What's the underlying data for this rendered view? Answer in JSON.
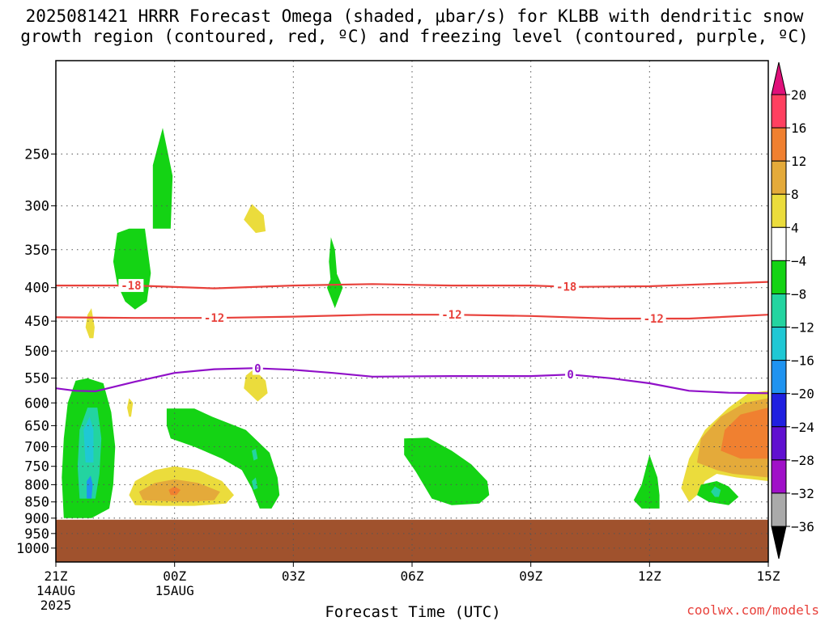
{
  "title_line1": "2025081421 HRRR Forecast Omega (shaded, μbar/s) for KLBB with dendritic snow",
  "title_line2": "growth region (contoured, red, ºC) and freezing level (contoured, purple, ºC)",
  "watermark": "coolwx.com/models",
  "chart_data": {
    "type": "time-height cross section",
    "title": "2025081421 HRRR Forecast Omega (shaded, μbar/s) for KLBB with dendritic snow growth region (contoured, red, ºC) and freezing level (contoured, purple, ºC)",
    "xlabel": "Forecast Time (UTC)",
    "ylabel": "",
    "x_unit": "forecast hours from 21Z 14AUG 2025",
    "xlim": [
      0,
      18
    ],
    "ylim_hPa": [
      1050,
      180
    ],
    "x_ticks": [
      {
        "hour": 0,
        "label": "21Z",
        "sub1": "14AUG",
        "sub2": "2025"
      },
      {
        "hour": 3,
        "label": "00Z",
        "sub1": "15AUG",
        "sub2": ""
      },
      {
        "hour": 6,
        "label": "03Z",
        "sub1": "",
        "sub2": ""
      },
      {
        "hour": 9,
        "label": "06Z",
        "sub1": "",
        "sub2": ""
      },
      {
        "hour": 12,
        "label": "09Z",
        "sub1": "",
        "sub2": ""
      },
      {
        "hour": 15,
        "label": "12Z",
        "sub1": "",
        "sub2": ""
      },
      {
        "hour": 18,
        "label": "15Z",
        "sub1": "",
        "sub2": ""
      }
    ],
    "y_ticks": [
      250,
      300,
      350,
      400,
      450,
      500,
      550,
      600,
      650,
      700,
      750,
      800,
      850,
      900,
      950,
      1000
    ],
    "grid": true,
    "colorbar": {
      "labels": [
        "20",
        "16",
        "12",
        "8",
        "4",
        "−4",
        "−8",
        "−12",
        "−16",
        "−20",
        "−24",
        "−28",
        "−32",
        "−36"
      ],
      "segments": [
        {
          "from": 20,
          "to": 16,
          "color": "#ff4060"
        },
        {
          "from": 16,
          "to": 12,
          "color": "#f08030"
        },
        {
          "from": 12,
          "to": 8,
          "color": "#e4aa3a"
        },
        {
          "from": 8,
          "to": 4,
          "color": "#ebdc3c"
        },
        {
          "from": 4,
          "to": -4,
          "color": "#ffffff"
        },
        {
          "from": -4,
          "to": -8,
          "color": "#14d314"
        },
        {
          "from": -8,
          "to": -12,
          "color": "#23d4a0"
        },
        {
          "from": -12,
          "to": -16,
          "color": "#1fc8d4"
        },
        {
          "from": -16,
          "to": -20,
          "color": "#1f93f0"
        },
        {
          "from": -20,
          "to": -24,
          "color": "#2020e0"
        },
        {
          "from": -24,
          "to": -28,
          "color": "#6010d0"
        },
        {
          "from": -28,
          "to": -32,
          "color": "#a010c8"
        },
        {
          "from": -32,
          "to": -36,
          "color": "#aaaaaa"
        }
      ],
      "over_color": "#e0107a",
      "under_color": "#000000"
    },
    "terrain": {
      "color": "#a0522d",
      "surface_pressure_hPa": 905
    },
    "contours": [
      {
        "name": "-18",
        "color": "#e8413b",
        "label": "-18",
        "label_hours": [
          1.9,
          12.9
        ],
        "points": [
          [
            0,
            397
          ],
          [
            2,
            397
          ],
          [
            4,
            401
          ],
          [
            6,
            397
          ],
          [
            8,
            395
          ],
          [
            10,
            397
          ],
          [
            12,
            397
          ],
          [
            13,
            399
          ],
          [
            15,
            398
          ],
          [
            18,
            392
          ]
        ]
      },
      {
        "name": "-12",
        "color": "#e8413b",
        "label": "-12",
        "label_hours": [
          4.0,
          10.0,
          15.1
        ],
        "points": [
          [
            0,
            444
          ],
          [
            2,
            445
          ],
          [
            4,
            445
          ],
          [
            6,
            443
          ],
          [
            8,
            440
          ],
          [
            10,
            440
          ],
          [
            12,
            442
          ],
          [
            14,
            446
          ],
          [
            16,
            446
          ],
          [
            18,
            440
          ]
        ]
      },
      {
        "name": "0",
        "color": "#9010c8",
        "label": "0",
        "label_hours": [
          5.1,
          13.0
        ],
        "points": [
          [
            0,
            570
          ],
          [
            0.5,
            575
          ],
          [
            1,
            576
          ],
          [
            2,
            557
          ],
          [
            3,
            540
          ],
          [
            4,
            533
          ],
          [
            5,
            531
          ],
          [
            6,
            534
          ],
          [
            7,
            540
          ],
          [
            8,
            547
          ],
          [
            10,
            546
          ],
          [
            12,
            546
          ],
          [
            13,
            543
          ],
          [
            14,
            550
          ],
          [
            15,
            560
          ],
          [
            16,
            575
          ],
          [
            17,
            579
          ],
          [
            18,
            580
          ]
        ]
      }
    ],
    "shaded_regions": [
      {
        "color": "#14d314",
        "points": [
          [
            0.2,
            900
          ],
          [
            0.15,
            780
          ],
          [
            0.2,
            680
          ],
          [
            0.3,
            600
          ],
          [
            0.5,
            555
          ],
          [
            0.8,
            550
          ],
          [
            1.2,
            560
          ],
          [
            1.4,
            620
          ],
          [
            1.5,
            700
          ],
          [
            1.45,
            800
          ],
          [
            1.35,
            870
          ],
          [
            0.9,
            900
          ],
          [
            0.5,
            900
          ]
        ]
      },
      {
        "color": "#23d4a0",
        "points": [
          [
            0.6,
            840
          ],
          [
            0.55,
            750
          ],
          [
            0.6,
            660
          ],
          [
            0.8,
            610
          ],
          [
            1.05,
            610
          ],
          [
            1.15,
            680
          ],
          [
            1.1,
            770
          ],
          [
            1.0,
            840
          ]
        ]
      },
      {
        "color": "#1fc8d4",
        "points": [
          [
            0.75,
            740
          ],
          [
            0.7,
            660
          ],
          [
            0.85,
            630
          ],
          [
            0.95,
            660
          ],
          [
            0.95,
            740
          ]
        ]
      },
      {
        "color": "#1f93f0",
        "points": [
          [
            0.78,
            840
          ],
          [
            0.78,
            790
          ],
          [
            0.88,
            775
          ],
          [
            0.93,
            800
          ],
          [
            0.9,
            840
          ]
        ]
      },
      {
        "color": "#14d314",
        "points": [
          [
            1.55,
            395
          ],
          [
            1.45,
            365
          ],
          [
            1.55,
            330
          ],
          [
            1.85,
            325
          ],
          [
            2.25,
            325
          ],
          [
            2.4,
            380
          ],
          [
            2.3,
            420
          ],
          [
            2.0,
            432
          ],
          [
            1.75,
            420
          ]
        ]
      },
      {
        "color": "#14d314",
        "points": [
          [
            2.45,
            325
          ],
          [
            2.45,
            260
          ],
          [
            2.7,
            228
          ],
          [
            2.95,
            270
          ],
          [
            2.9,
            325
          ]
        ]
      },
      {
        "color": "#ebdc3c",
        "points": [
          [
            0.85,
            478
          ],
          [
            0.75,
            460
          ],
          [
            0.8,
            440
          ],
          [
            0.9,
            430
          ],
          [
            0.98,
            460
          ],
          [
            0.95,
            478
          ]
        ]
      },
      {
        "color": "#ebdc3c",
        "points": [
          [
            1.85,
            630
          ],
          [
            1.8,
            610
          ],
          [
            1.85,
            590
          ],
          [
            1.95,
            600
          ],
          [
            1.9,
            630
          ]
        ]
      },
      {
        "color": "#ebdc3c",
        "points": [
          [
            5.05,
            330
          ],
          [
            4.75,
            315
          ],
          [
            4.95,
            298
          ],
          [
            5.25,
            310
          ],
          [
            5.3,
            328
          ]
        ]
      },
      {
        "color": "#ebdc3c",
        "points": [
          [
            5.1,
            597
          ],
          [
            4.75,
            570
          ],
          [
            4.8,
            545
          ],
          [
            5.0,
            533
          ],
          [
            5.3,
            555
          ],
          [
            5.35,
            580
          ]
        ]
      },
      {
        "color": "#14d314",
        "points": [
          [
            6.95,
            395
          ],
          [
            6.9,
            365
          ],
          [
            6.95,
            335
          ],
          [
            7.05,
            350
          ],
          [
            7.1,
            380
          ]
        ]
      },
      {
        "color": "#14d314",
        "points": [
          [
            2.9,
            680
          ],
          [
            2.8,
            650
          ],
          [
            2.8,
            612
          ],
          [
            3.5,
            612
          ],
          [
            3.95,
            630
          ],
          [
            4.8,
            660
          ],
          [
            5.4,
            715
          ],
          [
            5.6,
            780
          ],
          [
            5.65,
            830
          ],
          [
            5.45,
            870
          ],
          [
            5.15,
            870
          ],
          [
            4.95,
            810
          ],
          [
            4.7,
            760
          ],
          [
            4.2,
            730
          ],
          [
            3.5,
            700
          ]
        ]
      },
      {
        "color": "#23d4a0",
        "points": [
          [
            5.0,
            735
          ],
          [
            4.95,
            710
          ],
          [
            5.05,
            705
          ],
          [
            5.1,
            730
          ]
        ]
      },
      {
        "color": "#23d4a0",
        "points": [
          [
            5.0,
            815
          ],
          [
            4.95,
            790
          ],
          [
            5.05,
            780
          ],
          [
            5.1,
            810
          ]
        ]
      },
      {
        "color": "#ebdc3c",
        "points": [
          [
            2.0,
            860
          ],
          [
            1.85,
            830
          ],
          [
            2.0,
            790
          ],
          [
            2.5,
            760
          ],
          [
            3.0,
            750
          ],
          [
            3.6,
            760
          ],
          [
            4.2,
            790
          ],
          [
            4.5,
            830
          ],
          [
            4.3,
            855
          ],
          [
            3.5,
            862
          ],
          [
            2.7,
            862
          ]
        ]
      },
      {
        "color": "#e4aa3a",
        "points": [
          [
            2.2,
            845
          ],
          [
            2.1,
            820
          ],
          [
            2.5,
            795
          ],
          [
            3.0,
            785
          ],
          [
            3.6,
            795
          ],
          [
            4.15,
            820
          ],
          [
            4.0,
            845
          ],
          [
            3.3,
            850
          ]
        ]
      },
      {
        "color": "#f08030",
        "points": [
          [
            2.9,
            830
          ],
          [
            2.85,
            815
          ],
          [
            3.0,
            805
          ],
          [
            3.15,
            815
          ],
          [
            3.05,
            830
          ]
        ]
      },
      {
        "color": "#14d314",
        "points": [
          [
            7.05,
            430
          ],
          [
            6.85,
            400
          ],
          [
            7.05,
            375
          ],
          [
            7.25,
            400
          ]
        ]
      },
      {
        "color": "#14d314",
        "points": [
          [
            9.1,
            765
          ],
          [
            8.8,
            720
          ],
          [
            8.8,
            680
          ],
          [
            9.4,
            678
          ],
          [
            10.0,
            710
          ],
          [
            10.5,
            745
          ],
          [
            10.9,
            790
          ],
          [
            10.95,
            830
          ],
          [
            10.7,
            855
          ],
          [
            10.0,
            860
          ],
          [
            9.5,
            840
          ]
        ]
      },
      {
        "color": "#14d314",
        "points": [
          [
            15.0,
            720
          ],
          [
            14.8,
            800
          ],
          [
            14.6,
            845
          ],
          [
            14.8,
            870
          ],
          [
            15.25,
            870
          ],
          [
            15.25,
            830
          ],
          [
            15.2,
            780
          ]
        ]
      },
      {
        "color": "#ebdc3c",
        "points": [
          [
            16.0,
            850
          ],
          [
            15.8,
            810
          ],
          [
            16.0,
            730
          ],
          [
            16.4,
            660
          ],
          [
            17.0,
            610
          ],
          [
            17.5,
            580
          ],
          [
            18.0,
            575
          ],
          [
            18.0,
            790
          ],
          [
            17.2,
            780
          ],
          [
            16.7,
            770
          ],
          [
            16.4,
            790
          ],
          [
            16.2,
            830
          ]
        ]
      },
      {
        "color": "#e4aa3a",
        "points": [
          [
            16.2,
            740
          ],
          [
            16.3,
            680
          ],
          [
            16.8,
            630
          ],
          [
            17.4,
            600
          ],
          [
            18.0,
            590
          ],
          [
            18.0,
            780
          ],
          [
            17.1,
            770
          ],
          [
            16.7,
            760
          ]
        ]
      },
      {
        "color": "#f08030",
        "points": [
          [
            16.8,
            710
          ],
          [
            16.9,
            660
          ],
          [
            17.3,
            625
          ],
          [
            18.0,
            610
          ],
          [
            18.0,
            730
          ],
          [
            17.3,
            730
          ]
        ]
      },
      {
        "color": "#14d314",
        "points": [
          [
            16.5,
            850
          ],
          [
            16.2,
            830
          ],
          [
            16.3,
            800
          ],
          [
            16.7,
            790
          ],
          [
            17.0,
            805
          ],
          [
            17.25,
            835
          ],
          [
            17.0,
            860
          ]
        ]
      },
      {
        "color": "#23d4a0",
        "points": [
          [
            16.65,
            835
          ],
          [
            16.55,
            820
          ],
          [
            16.65,
            805
          ],
          [
            16.8,
            815
          ],
          [
            16.75,
            835
          ]
        ]
      }
    ]
  }
}
